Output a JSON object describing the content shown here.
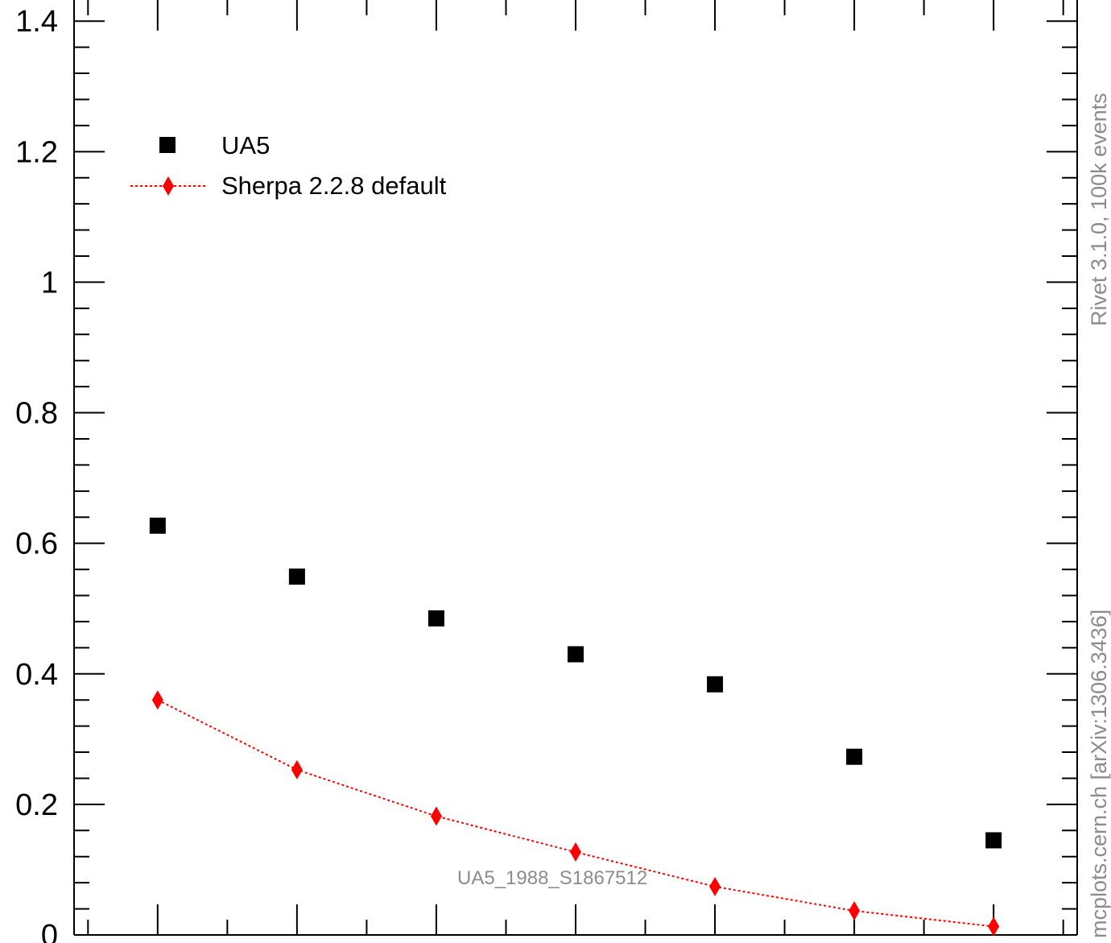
{
  "chart_data": {
    "type": "scatter",
    "x": [
      1,
      2,
      3,
      4,
      5,
      6,
      7
    ],
    "ylim": [
      0,
      1.42
    ],
    "xlim": [
      0.4,
      7.6
    ],
    "yticks": [
      {
        "value": 0,
        "label": "0"
      },
      {
        "value": 0.2,
        "label": "0.2"
      },
      {
        "value": 0.4,
        "label": "0.4"
      },
      {
        "value": 0.6,
        "label": "0.6"
      },
      {
        "value": 0.8,
        "label": "0.8"
      },
      {
        "value": 1.0,
        "label": "1"
      },
      {
        "value": 1.2,
        "label": "1.2"
      },
      {
        "value": 1.4,
        "label": "1.4"
      }
    ],
    "legend_position": "top-left",
    "series": [
      {
        "name": "UA5",
        "marker": "square",
        "color": "#000000",
        "values": [
          0.627,
          0.549,
          0.485,
          0.43,
          0.384,
          0.273,
          0.145
        ]
      },
      {
        "name": "Sherpa 2.2.8 default",
        "marker": "diamond",
        "line": "dotted",
        "color": "#ff0000",
        "values": [
          0.36,
          0.253,
          0.182,
          0.127,
          0.074,
          0.037,
          0.013
        ]
      }
    ]
  },
  "annotations": {
    "watermark": "UA5_1988_S1867512",
    "rivet": "Rivet 3.1.0,  100k events",
    "mcplots": "mcplots.cern.ch [arXiv:1306.3436]"
  }
}
